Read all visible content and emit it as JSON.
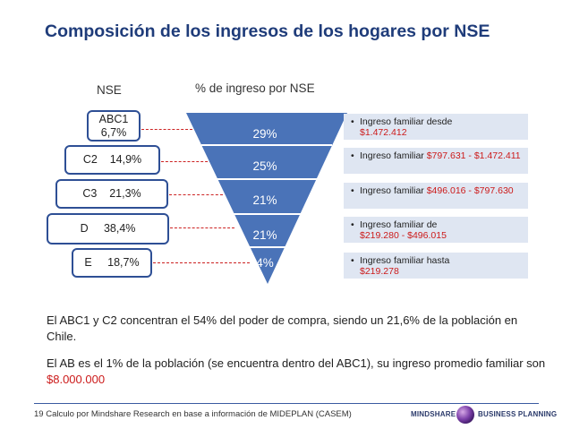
{
  "title": "Composición de los  ingresos de los hogares por NSE",
  "headers": {
    "nse": "NSE",
    "pct": "% de ingreso por NSE"
  },
  "segments": [
    {
      "nse": "ABC1\n6,7%",
      "pct": "29%",
      "desc_prefix": "Ingreso familiar desde",
      "desc_amount": "$1.472.412"
    },
    {
      "nse": "C2    14,9%",
      "pct": "25%",
      "desc_prefix": "Ingreso familiar",
      "desc_amount": "$797.631 - $1.472.411"
    },
    {
      "nse": "C3    21,3%",
      "pct": "21%",
      "desc_prefix": "Ingreso familiar",
      "desc_amount": "$496.016 - $797.630"
    },
    {
      "nse": "D     38,4%",
      "pct": "21%",
      "desc_prefix": "Ingreso familiar de",
      "desc_amount": "$219.280 -  $496.015"
    },
    {
      "nse": "E     18,7%",
      "pct": "4%",
      "desc_prefix": "Ingreso familiar hasta",
      "desc_amount": "$219.278"
    }
  ],
  "colors": {
    "funnel": "#4a73b8",
    "funnel_divider": "#ffffff",
    "box_border": "#2e4f95",
    "info_bg": "#dfe6f2",
    "highlight": "#cc1a1a",
    "title": "#1f3c7a"
  },
  "paragraph1": "El ABC1 y C2 concentran el 54% del poder de compra, siendo un 21,6% de la población en Chile.",
  "paragraph2_text": "El AB es el 1% de la población (se encuentra dentro del ABC1), su ingreso promedio familiar son ",
  "paragraph2_amount": "$8.000.000",
  "footer": "19 Calculo por Mindshare Research en base a información de MIDEPLAN (CASEM)",
  "logo": {
    "left": "MINDSHARE",
    "right": "BUSINESS PLANNING"
  }
}
